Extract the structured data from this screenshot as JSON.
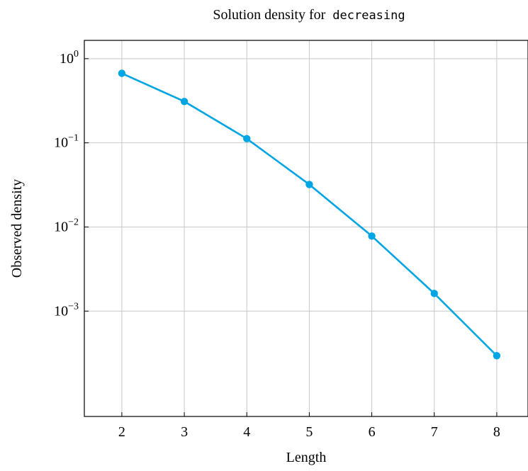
{
  "chart_data": {
    "type": "line",
    "title_prefix": "Solution density for",
    "title_code": "decreasing",
    "xlabel": "Length",
    "ylabel": "Observed density",
    "x": [
      2,
      3,
      4,
      5,
      6,
      7,
      8
    ],
    "series": [
      {
        "values": [
          0.67,
          0.31,
          0.112,
          0.032,
          0.0078,
          0.00162,
          0.000295
        ],
        "color": "#00a5e3"
      }
    ],
    "xlim": [
      1.4,
      8.5
    ],
    "ylim": [
      5.6e-05,
      1.65
    ],
    "yscale": "log",
    "x_ticks": [
      2,
      3,
      4,
      5,
      6,
      7,
      8
    ],
    "y_ticks": [
      {
        "value": 1,
        "base": "10",
        "exponent": "0"
      },
      {
        "value": 0.1,
        "base": "10",
        "exponent": "−1"
      },
      {
        "value": 0.01,
        "base": "10",
        "exponent": "−2"
      },
      {
        "value": 0.001,
        "base": "10",
        "exponent": "−3"
      }
    ],
    "grid": true
  }
}
